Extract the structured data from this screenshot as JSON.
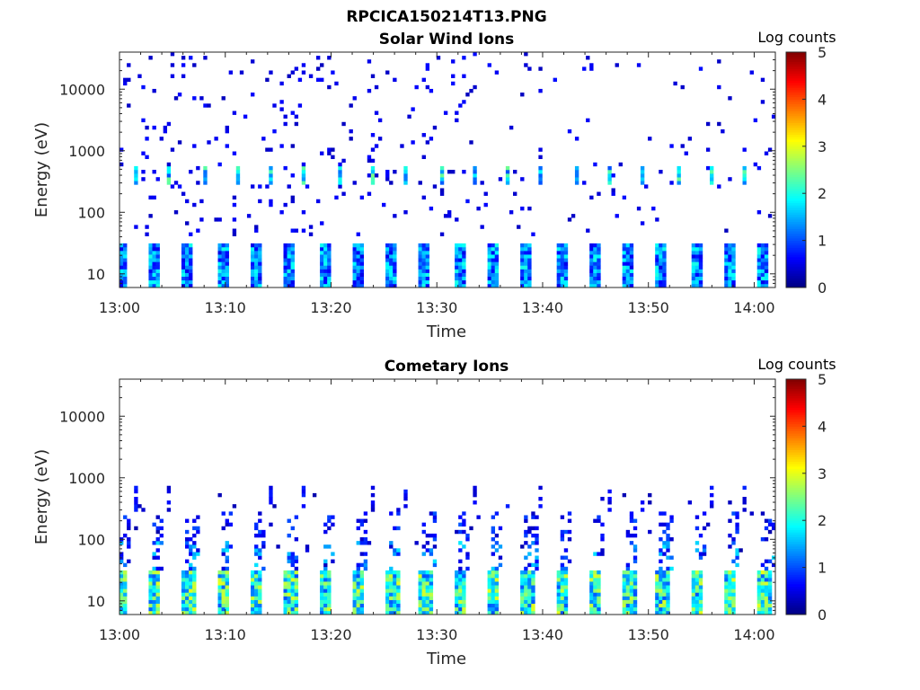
{
  "figure_title": "RPCICA150214T13.PNG",
  "colorbar_label": "Log counts",
  "chart_data": [
    {
      "type": "heatmap",
      "title": "Solar Wind Ions",
      "xlabel": "Time",
      "ylabel": "Energy (eV)",
      "x_ticks": [
        "13:00",
        "13:10",
        "13:20",
        "13:30",
        "13:40",
        "13:50",
        "14:00"
      ],
      "x_range_minutes": [
        0,
        62
      ],
      "y_ticks": [
        "10",
        "100",
        "1000",
        "10000"
      ],
      "y_range_ev": [
        6,
        40000
      ],
      "y_scale": "log",
      "colormap": "jet",
      "color_range": [
        0,
        5
      ],
      "colorbar_ticks": [
        "0",
        "1",
        "2",
        "3",
        "4",
        "5"
      ],
      "colorbar_label": "Log counts",
      "description_values": {
        "sweep_period_minutes": 3.2,
        "low_energy_band_ev": [
          6,
          30
        ],
        "low_energy_band_log_counts": [
          0.5,
          2
        ],
        "peak_band_ev": [
          300,
          600
        ],
        "peak_band_log_counts": [
          1,
          2.5
        ],
        "background_log_counts": 0.3
      }
    },
    {
      "type": "heatmap",
      "title": "Cometary Ions",
      "xlabel": "Time",
      "ylabel": "Energy (eV)",
      "x_ticks": [
        "13:00",
        "13:10",
        "13:20",
        "13:30",
        "13:40",
        "13:50",
        "14:00"
      ],
      "x_range_minutes": [
        0,
        62
      ],
      "y_ticks": [
        "10",
        "100",
        "1000",
        "10000"
      ],
      "y_range_ev": [
        6,
        40000
      ],
      "y_scale": "log",
      "colormap": "jet",
      "color_range": [
        0,
        5
      ],
      "colorbar_ticks": [
        "0",
        "1",
        "2",
        "3",
        "4",
        "5"
      ],
      "colorbar_label": "Log counts",
      "description_values": {
        "sweep_period_minutes": 3.2,
        "low_energy_band_ev": [
          6,
          30
        ],
        "low_energy_band_log_counts": [
          1,
          3
        ],
        "mid_band_ev": [
          30,
          300
        ],
        "mid_band_log_counts": [
          0.3,
          1.8
        ],
        "background_log_counts": 0.2
      }
    }
  ]
}
